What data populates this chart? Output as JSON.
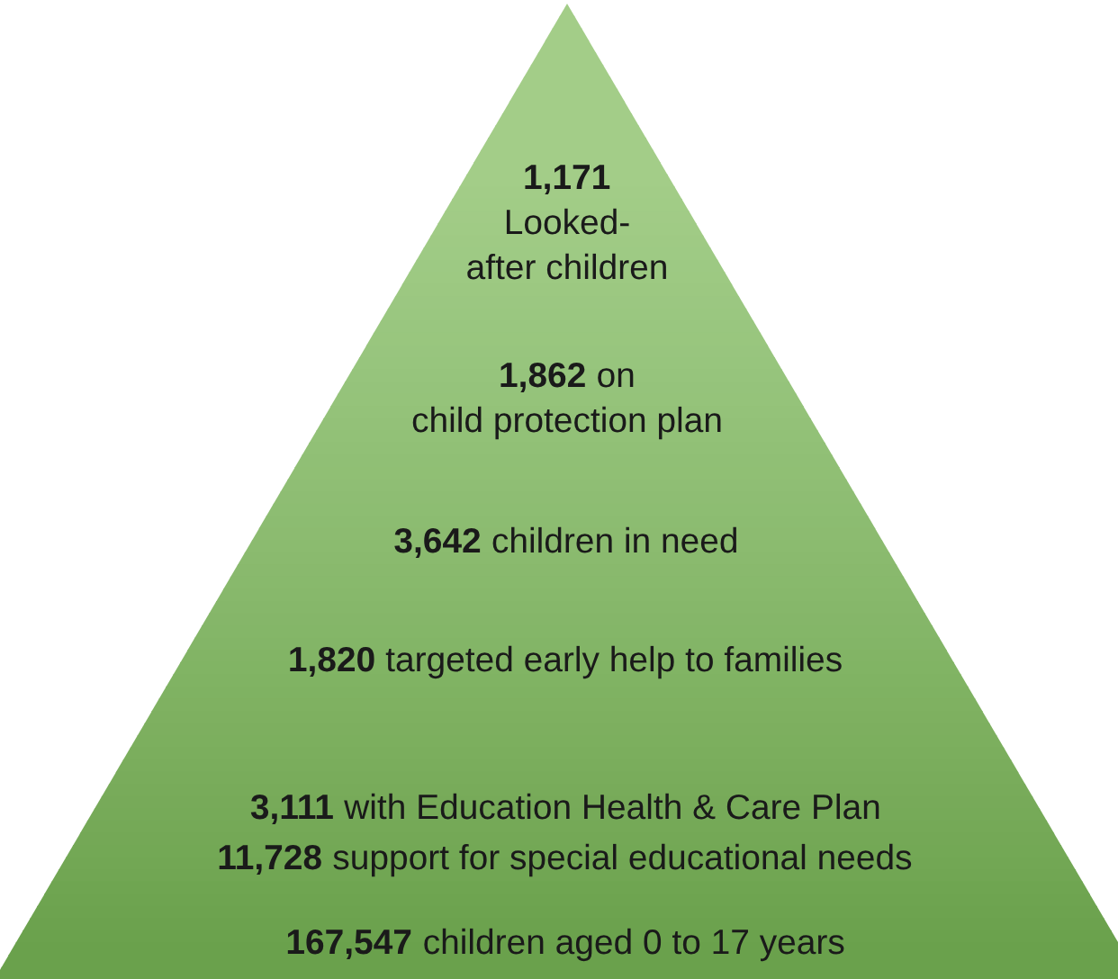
{
  "chart_data": {
    "type": "other",
    "categories": [
      "\nLooked-\nafter children",
      " on\nchild protection plan",
      " children in need",
      " targeted early help to families",
      " with Education Health & Care Plan",
      " support for special educational needs",
      " children aged 0 to 17 years"
    ],
    "values": [
      1171,
      1862,
      3642,
      1820,
      3111,
      11728,
      167547
    ],
    "value_labels": [
      "1,171",
      "1,862",
      "3,642",
      "1,820",
      "3,111",
      "11,728",
      "167,547"
    ],
    "colors": [
      "#a3cd88",
      "#96c47c",
      "#8bbb6f",
      "#82b465",
      "#76aa58",
      "#72a754",
      "#6aa14c"
    ]
  }
}
